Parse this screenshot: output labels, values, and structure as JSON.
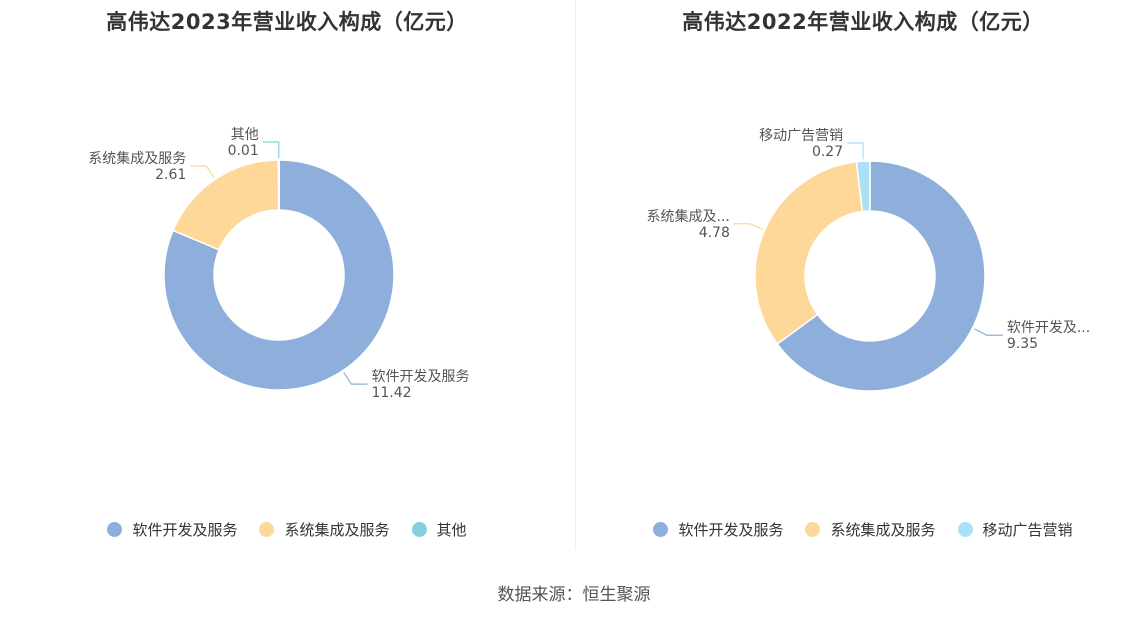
{
  "chart_data": [
    {
      "type": "pie",
      "title": "高伟达2023年营业收入构成（亿元）",
      "categories": [
        "软件开发及服务",
        "系统集成及服务",
        "其他"
      ],
      "values": [
        11.42,
        2.61,
        0.01
      ],
      "labels": [
        "软件开发及服务",
        "系统集成及服务",
        "其他"
      ],
      "value_labels": [
        "11.42",
        "2.61",
        "0.01"
      ],
      "colors": [
        "#8eaedc",
        "#fdd898",
        "#86d0de"
      ],
      "legend": [
        "软件开发及服务",
        "系统集成及服务",
        "其他"
      ]
    },
    {
      "type": "pie",
      "title": "高伟达2022年营业收入构成（亿元）",
      "categories": [
        "软件开发及服务",
        "系统集成及服务",
        "移动广告营销"
      ],
      "values": [
        9.35,
        4.78,
        0.27
      ],
      "labels": [
        "软件开发及...",
        "系统集成及...",
        "移动广告营销"
      ],
      "value_labels": [
        "9.35",
        "4.78",
        "0.27"
      ],
      "colors": [
        "#8eaedc",
        "#fdd898",
        "#a9e1f6"
      ],
      "legend": [
        "软件开发及服务",
        "系统集成及服务",
        "移动广告营销"
      ]
    }
  ],
  "source": "数据来源：恒生聚源"
}
